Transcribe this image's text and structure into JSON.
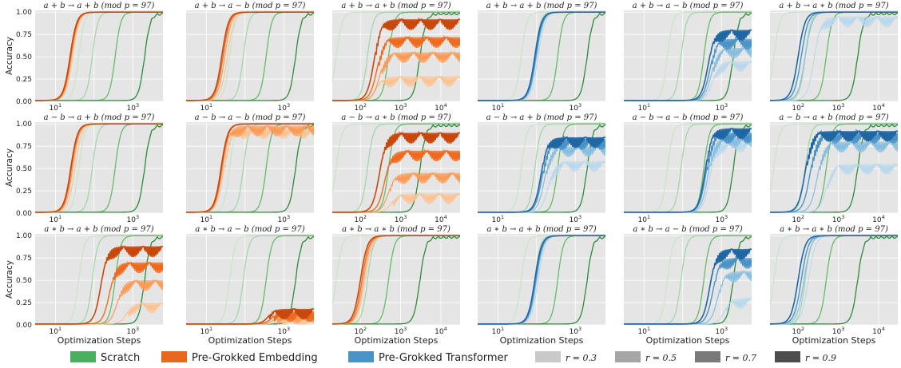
{
  "figure": {
    "ylabel": "Accuracy",
    "xlabel": "Optimization Steps",
    "legend": [
      {
        "label": "Scratch",
        "color": "#4caf5f"
      },
      {
        "label": "Pre-Grokked Embedding",
        "color": "#e8681e"
      },
      {
        "label": "Pre-Grokked Transformer",
        "color": "#4a93c7"
      },
      {
        "label": "r = 0.3",
        "color": "#c9c9c9"
      },
      {
        "label": "r = 0.5",
        "color": "#a6a6a6"
      },
      {
        "label": "r = 0.7",
        "color": "#7a7a7a"
      },
      {
        "label": "r = 0.9",
        "color": "#4d4d4d"
      }
    ],
    "colors": {
      "panel_bg": "#e5e5e5",
      "grid": "#ffffff",
      "scratch": [
        "#c8e6c9",
        "#a5d6a7",
        "#66bb6a",
        "#2e8b3e"
      ],
      "embedding": [
        "#fdc08c",
        "#fb9a55",
        "#ef6a1d",
        "#c8470a"
      ],
      "transformer": [
        "#b6d7ec",
        "#87bddf",
        "#4a93c7",
        "#1f66a4"
      ]
    }
  },
  "chart_data": [
    {
      "type": "line",
      "title": "a + b → a + b  (mod p = 97)",
      "xscale": "log",
      "xlim": [
        3,
        6000
      ],
      "ylim": [
        0,
        1.02
      ],
      "yticks": [
        "0.00",
        "0.25",
        "0.50",
        "0.75",
        "1.00"
      ],
      "xticks": [
        "10^1",
        "10^3"
      ],
      "method": "embedding",
      "series": [
        {
          "r": 0.3,
          "final": 1.0,
          "mid": 28
        },
        {
          "r": 0.5,
          "final": 1.0,
          "mid": 26
        },
        {
          "r": 0.7,
          "final": 1.0,
          "mid": 25
        },
        {
          "r": 0.9,
          "final": 1.0,
          "mid": 24
        }
      ],
      "scratch_mids": [
        40,
        90,
        350,
        2000
      ]
    },
    {
      "type": "line",
      "title": "a + b → a − b  (mod p = 97)",
      "xscale": "log",
      "xlim": [
        3,
        6000
      ],
      "ylim": [
        0,
        1.02
      ],
      "yticks": [
        "0.00",
        "0.25",
        "0.50",
        "0.75",
        "1.00"
      ],
      "xticks": [
        "10^1",
        "10^3"
      ],
      "method": "embedding",
      "series": [
        {
          "r": 0.3,
          "final": 1.0,
          "mid": 35
        },
        {
          "r": 0.5,
          "final": 1.0,
          "mid": 30
        },
        {
          "r": 0.7,
          "final": 1.0,
          "mid": 27
        },
        {
          "r": 0.9,
          "final": 1.0,
          "mid": 25
        }
      ],
      "scratch_mids": [
        40,
        90,
        350,
        2000
      ]
    },
    {
      "type": "line",
      "title": "a + b → a ∗ b  (mod p = 97)",
      "xscale": "log",
      "xlim": [
        20,
        30000
      ],
      "ylim": [
        0,
        1.02
      ],
      "yticks": [
        "0.00",
        "0.25",
        "0.50",
        "0.75",
        "1.00"
      ],
      "xticks": [
        "10^2",
        "10^3",
        "10^4"
      ],
      "method": "embedding",
      "series": [
        {
          "r": 0.3,
          "final": 0.28,
          "mid": 250
        },
        {
          "r": 0.5,
          "final": 0.55,
          "mid": 300
        },
        {
          "r": 0.7,
          "final": 0.72,
          "mid": 260
        },
        {
          "r": 0.9,
          "final": 0.92,
          "mid": 220
        }
      ],
      "scratch_mids": [
        25,
        150,
        500,
        3000
      ]
    },
    {
      "type": "line",
      "title": "a + b → a + b  (mod p = 97)",
      "xscale": "log",
      "xlim": [
        3,
        6000
      ],
      "ylim": [
        0,
        1.02
      ],
      "yticks": [
        "0.00",
        "0.25",
        "0.50",
        "0.75",
        "1.00"
      ],
      "xticks": [
        "10^1",
        "10^3"
      ],
      "method": "transformer",
      "series": [
        {
          "r": 0.3,
          "final": 1.0,
          "mid": 110
        },
        {
          "r": 0.5,
          "final": 1.0,
          "mid": 100
        },
        {
          "r": 0.7,
          "final": 1.0,
          "mid": 95
        },
        {
          "r": 0.9,
          "final": 1.0,
          "mid": 90
        }
      ],
      "scratch_mids": [
        40,
        90,
        350,
        2000
      ]
    },
    {
      "type": "line",
      "title": "a + b → a − b  (mod p = 97)",
      "xscale": "log",
      "xlim": [
        3,
        6000
      ],
      "ylim": [
        0,
        1.02
      ],
      "yticks": [
        "0.00",
        "0.25",
        "0.50",
        "0.75",
        "1.00"
      ],
      "xticks": [
        "10^1",
        "10^3"
      ],
      "method": "transformer",
      "series": [
        {
          "r": 0.3,
          "final": 0.45,
          "mid": 600
        },
        {
          "r": 0.5,
          "final": 0.6,
          "mid": 550
        },
        {
          "r": 0.7,
          "final": 0.7,
          "mid": 500
        },
        {
          "r": 0.9,
          "final": 0.8,
          "mid": 450
        }
      ],
      "scratch_mids": [
        40,
        90,
        350,
        2000
      ]
    },
    {
      "type": "line",
      "title": "a + b → a ∗ b  (mod p = 97)",
      "xscale": "log",
      "xlim": [
        20,
        30000
      ],
      "ylim": [
        0,
        1.02
      ],
      "yticks": [
        "0.00",
        "0.25",
        "0.50",
        "0.75",
        "1.00"
      ],
      "xticks": [
        "10^2",
        "10^3",
        "10^4"
      ],
      "method": "transformer",
      "series": [
        {
          "r": 0.3,
          "final": 0.95,
          "mid": 250
        },
        {
          "r": 0.5,
          "final": 1.0,
          "mid": 150
        },
        {
          "r": 0.7,
          "final": 1.0,
          "mid": 120
        },
        {
          "r": 0.9,
          "final": 1.0,
          "mid": 100
        }
      ],
      "scratch_mids": [
        25,
        150,
        500,
        3000
      ]
    },
    {
      "type": "line",
      "title": "a − b → a + b  (mod p = 97)",
      "xscale": "log",
      "xlim": [
        3,
        6000
      ],
      "ylim": [
        0,
        1.02
      ],
      "yticks": [
        "0.00",
        "0.25",
        "0.50",
        "0.75",
        "1.00"
      ],
      "xticks": [
        "10^1",
        "10^3"
      ],
      "method": "embedding",
      "series": [
        {
          "r": 0.3,
          "final": 1.0,
          "mid": 32
        },
        {
          "r": 0.5,
          "final": 1.0,
          "mid": 28
        },
        {
          "r": 0.7,
          "final": 1.0,
          "mid": 26
        },
        {
          "r": 0.9,
          "final": 1.0,
          "mid": 25
        }
      ],
      "scratch_mids": [
        40,
        90,
        350,
        2000
      ]
    },
    {
      "type": "line",
      "title": "a − b → a − b  (mod p = 97)",
      "xscale": "log",
      "xlim": [
        3,
        6000
      ],
      "ylim": [
        0,
        1.02
      ],
      "yticks": [
        "0.00",
        "0.25",
        "0.50",
        "0.75",
        "1.00"
      ],
      "xticks": [
        "10^1",
        "10^3"
      ],
      "method": "embedding",
      "series": [
        {
          "r": 0.3,
          "final": 0.95,
          "mid": 28
        },
        {
          "r": 0.5,
          "final": 0.98,
          "mid": 26
        },
        {
          "r": 0.7,
          "final": 1.0,
          "mid": 25
        },
        {
          "r": 0.9,
          "final": 1.0,
          "mid": 24
        }
      ],
      "scratch_mids": [
        40,
        90,
        350,
        2000
      ]
    },
    {
      "type": "line",
      "title": "a − b → a ∗ b  (mod p = 97)",
      "xscale": "log",
      "xlim": [
        20,
        30000
      ],
      "ylim": [
        0,
        1.02
      ],
      "yticks": [
        "0.00",
        "0.25",
        "0.50",
        "0.75",
        "1.00"
      ],
      "xticks": [
        "10^2",
        "10^3",
        "10^4"
      ],
      "method": "embedding",
      "series": [
        {
          "r": 0.3,
          "final": 0.22,
          "mid": 600
        },
        {
          "r": 0.5,
          "final": 0.45,
          "mid": 500
        },
        {
          "r": 0.7,
          "final": 0.7,
          "mid": 400
        },
        {
          "r": 0.9,
          "final": 0.9,
          "mid": 300
        }
      ],
      "scratch_mids": [
        25,
        150,
        500,
        3000
      ]
    },
    {
      "type": "line",
      "title": "a − b → a + b  (mod p = 97)",
      "xscale": "log",
      "xlim": [
        3,
        6000
      ],
      "ylim": [
        0,
        1.02
      ],
      "yticks": [
        "0.00",
        "0.25",
        "0.50",
        "0.75",
        "1.00"
      ],
      "xticks": [
        "10^1",
        "10^3"
      ],
      "method": "transformer",
      "series": [
        {
          "r": 0.3,
          "final": 0.58,
          "mid": 200
        },
        {
          "r": 0.5,
          "final": 0.75,
          "mid": 160
        },
        {
          "r": 0.7,
          "final": 0.83,
          "mid": 140
        },
        {
          "r": 0.9,
          "final": 0.85,
          "mid": 130
        }
      ],
      "scratch_mids": [
        40,
        90,
        350,
        2000
      ]
    },
    {
      "type": "line",
      "title": "a − b → a − b  (mod p = 97)",
      "xscale": "log",
      "xlim": [
        3,
        6000
      ],
      "ylim": [
        0,
        1.02
      ],
      "yticks": [
        "0.00",
        "0.25",
        "0.50",
        "0.75",
        "1.00"
      ],
      "xticks": [
        "10^1",
        "10^3"
      ],
      "method": "transformer",
      "series": [
        {
          "r": 0.3,
          "final": 0.8,
          "mid": 500
        },
        {
          "r": 0.5,
          "final": 0.85,
          "mid": 450
        },
        {
          "r": 0.7,
          "final": 0.9,
          "mid": 400
        },
        {
          "r": 0.9,
          "final": 0.95,
          "mid": 380
        }
      ],
      "scratch_mids": [
        40,
        90,
        350,
        2000
      ]
    },
    {
      "type": "line",
      "title": "a − b → a ∗ b  (mod p = 97)",
      "xscale": "log",
      "xlim": [
        20,
        30000
      ],
      "ylim": [
        0,
        1.02
      ],
      "yticks": [
        "0.00",
        "0.25",
        "0.50",
        "0.75",
        "1.00"
      ],
      "xticks": [
        "10^2",
        "10^3",
        "10^4"
      ],
      "method": "transformer",
      "series": [
        {
          "r": 0.3,
          "final": 0.55,
          "mid": 500
        },
        {
          "r": 0.5,
          "final": 0.8,
          "mid": 300
        },
        {
          "r": 0.7,
          "final": 0.9,
          "mid": 200
        },
        {
          "r": 0.9,
          "final": 0.92,
          "mid": 150
        }
      ],
      "scratch_mids": [
        25,
        150,
        500,
        3000
      ]
    },
    {
      "type": "line",
      "title": "a ∗ b → a + b  (mod p = 97)",
      "xscale": "log",
      "xlim": [
        3,
        6000
      ],
      "ylim": [
        0,
        1.02
      ],
      "yticks": [
        "0.00",
        "0.25",
        "0.50",
        "0.75",
        "1.00"
      ],
      "xticks": [
        "10^1",
        "10^3"
      ],
      "method": "embedding",
      "series": [
        {
          "r": 0.3,
          "final": 0.25,
          "mid": 700
        },
        {
          "r": 0.5,
          "final": 0.5,
          "mid": 400
        },
        {
          "r": 0.7,
          "final": 0.7,
          "mid": 250
        },
        {
          "r": 0.9,
          "final": 0.88,
          "mid": 150
        }
      ],
      "scratch_mids": [
        40,
        90,
        350,
        2000
      ]
    },
    {
      "type": "line",
      "title": "a ∗ b → a − b  (mod p = 97)",
      "xscale": "log",
      "xlim": [
        3,
        6000
      ],
      "ylim": [
        0,
        1.02
      ],
      "yticks": [
        "0.00",
        "0.25",
        "0.50",
        "0.75",
        "1.00"
      ],
      "xticks": [
        "10^1",
        "10^3"
      ],
      "method": "embedding",
      "series": [
        {
          "r": 0.3,
          "final": 0.1,
          "mid": 800
        },
        {
          "r": 0.5,
          "final": 0.13,
          "mid": 600
        },
        {
          "r": 0.7,
          "final": 0.15,
          "mid": 500
        },
        {
          "r": 0.9,
          "final": 0.18,
          "mid": 400
        }
      ],
      "scratch_mids": [
        40,
        90,
        350,
        2000
      ]
    },
    {
      "type": "line",
      "title": "a ∗ b → a ∗ b  (mod p = 97)",
      "xscale": "log",
      "xlim": [
        20,
        30000
      ],
      "ylim": [
        0,
        1.02
      ],
      "yticks": [
        "0.00",
        "0.25",
        "0.50",
        "0.75",
        "1.00"
      ],
      "xticks": [
        "10^2",
        "10^3",
        "10^4"
      ],
      "method": "embedding",
      "series": [
        {
          "r": 0.3,
          "final": 1.0,
          "mid": 130
        },
        {
          "r": 0.5,
          "final": 1.0,
          "mid": 120
        },
        {
          "r": 0.7,
          "final": 1.0,
          "mid": 110
        },
        {
          "r": 0.9,
          "final": 1.0,
          "mid": 100
        }
      ],
      "scratch_mids": [
        25,
        150,
        500,
        3000
      ]
    },
    {
      "type": "line",
      "title": "a ∗ b → a + b  (mod p = 97)",
      "xscale": "log",
      "xlim": [
        3,
        6000
      ],
      "ylim": [
        0,
        1.02
      ],
      "yticks": [
        "0.00",
        "0.25",
        "0.50",
        "0.75",
        "1.00"
      ],
      "xticks": [
        "10^1",
        "10^3"
      ],
      "method": "transformer",
      "series": [
        {
          "r": 0.3,
          "final": 1.0,
          "mid": 110
        },
        {
          "r": 0.5,
          "final": 1.0,
          "mid": 100
        },
        {
          "r": 0.7,
          "final": 1.0,
          "mid": 95
        },
        {
          "r": 0.9,
          "final": 1.0,
          "mid": 90
        }
      ],
      "scratch_mids": [
        40,
        90,
        350,
        2000
      ]
    },
    {
      "type": "line",
      "title": "a ∗ b → a − b  (mod p = 97)",
      "xscale": "log",
      "xlim": [
        3,
        6000
      ],
      "ylim": [
        0,
        1.02
      ],
      "yticks": [
        "0.00",
        "0.25",
        "0.50",
        "0.75",
        "1.00"
      ],
      "xticks": [
        "10^1",
        "10^3"
      ],
      "method": "transformer",
      "series": [
        {
          "r": 0.3,
          "final": 0.3,
          "mid": 1200
        },
        {
          "r": 0.5,
          "final": 0.6,
          "mid": 800
        },
        {
          "r": 0.7,
          "final": 0.75,
          "mid": 600
        },
        {
          "r": 0.9,
          "final": 0.85,
          "mid": 500
        }
      ],
      "scratch_mids": [
        40,
        90,
        350,
        2000
      ]
    },
    {
      "type": "line",
      "title": "a ∗ b → a ∗ b  (mod p = 97)",
      "xscale": "log",
      "xlim": [
        20,
        30000
      ],
      "ylim": [
        0,
        1.02
      ],
      "yticks": [
        "0.00",
        "0.25",
        "0.50",
        "0.75",
        "1.00"
      ],
      "xticks": [
        "10^2",
        "10^3",
        "10^4"
      ],
      "method": "transformer",
      "series": [
        {
          "r": 0.3,
          "final": 1.0,
          "mid": 180
        },
        {
          "r": 0.5,
          "final": 1.0,
          "mid": 140
        },
        {
          "r": 0.7,
          "final": 1.0,
          "mid": 120
        },
        {
          "r": 0.9,
          "final": 1.0,
          "mid": 100
        }
      ],
      "scratch_mids": [
        25,
        150,
        500,
        3000
      ]
    }
  ]
}
